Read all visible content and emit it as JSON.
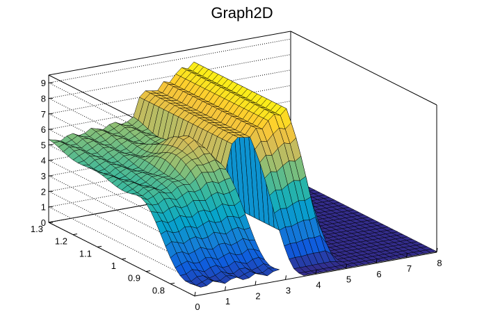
{
  "chart_data": {
    "type": "surface",
    "title": "Graph2D",
    "xlabel": "",
    "ylabel": "",
    "zlabel": "",
    "xlim": [
      0,
      8
    ],
    "ylim": [
      0.7,
      1.3
    ],
    "zlim": [
      0,
      9.5
    ],
    "x_ticks": [
      "0",
      "1",
      "2",
      "3",
      "4",
      "5",
      "6",
      "7",
      "8"
    ],
    "y_ticks": [
      "0.8",
      "0.9",
      "1",
      "1.1",
      "1.2",
      "1.3"
    ],
    "z_ticks": [
      "0",
      "1",
      "2",
      "3",
      "4",
      "5",
      "6",
      "7",
      "8",
      "9"
    ],
    "grid": true,
    "palette": [
      "#352a87",
      "#0f5cdd",
      "#1481d6",
      "#06a4ca",
      "#2eb7a4",
      "#87bf77",
      "#d1bb59",
      "#fec832",
      "#f9fb0e"
    ],
    "regions": [
      {
        "x_range": [
          0,
          3.0
        ],
        "y_range": [
          0.7,
          1.3
        ],
        "z": "z rises from ~0.6 at y=0.7 to a plateau of ~4.5–7 at y≥0.95; peak ~7.2 near x≈2.3, y≈1.0"
      },
      {
        "x_range": [
          3.0,
          3.6
        ],
        "y_range": [
          0.7,
          0.92
        ],
        "z": "missing (gap)"
      },
      {
        "x_range": [
          3.6,
          5.2
        ],
        "y_range": [
          0.7,
          1.3
        ],
        "z": "plateau ~7–9 for y≥0.92, ~8.8 near x≈4.8"
      },
      {
        "x_range": [
          5.2,
          8
        ],
        "y_range": [
          0.7,
          1.3
        ],
        "z": "~0"
      }
    ]
  }
}
